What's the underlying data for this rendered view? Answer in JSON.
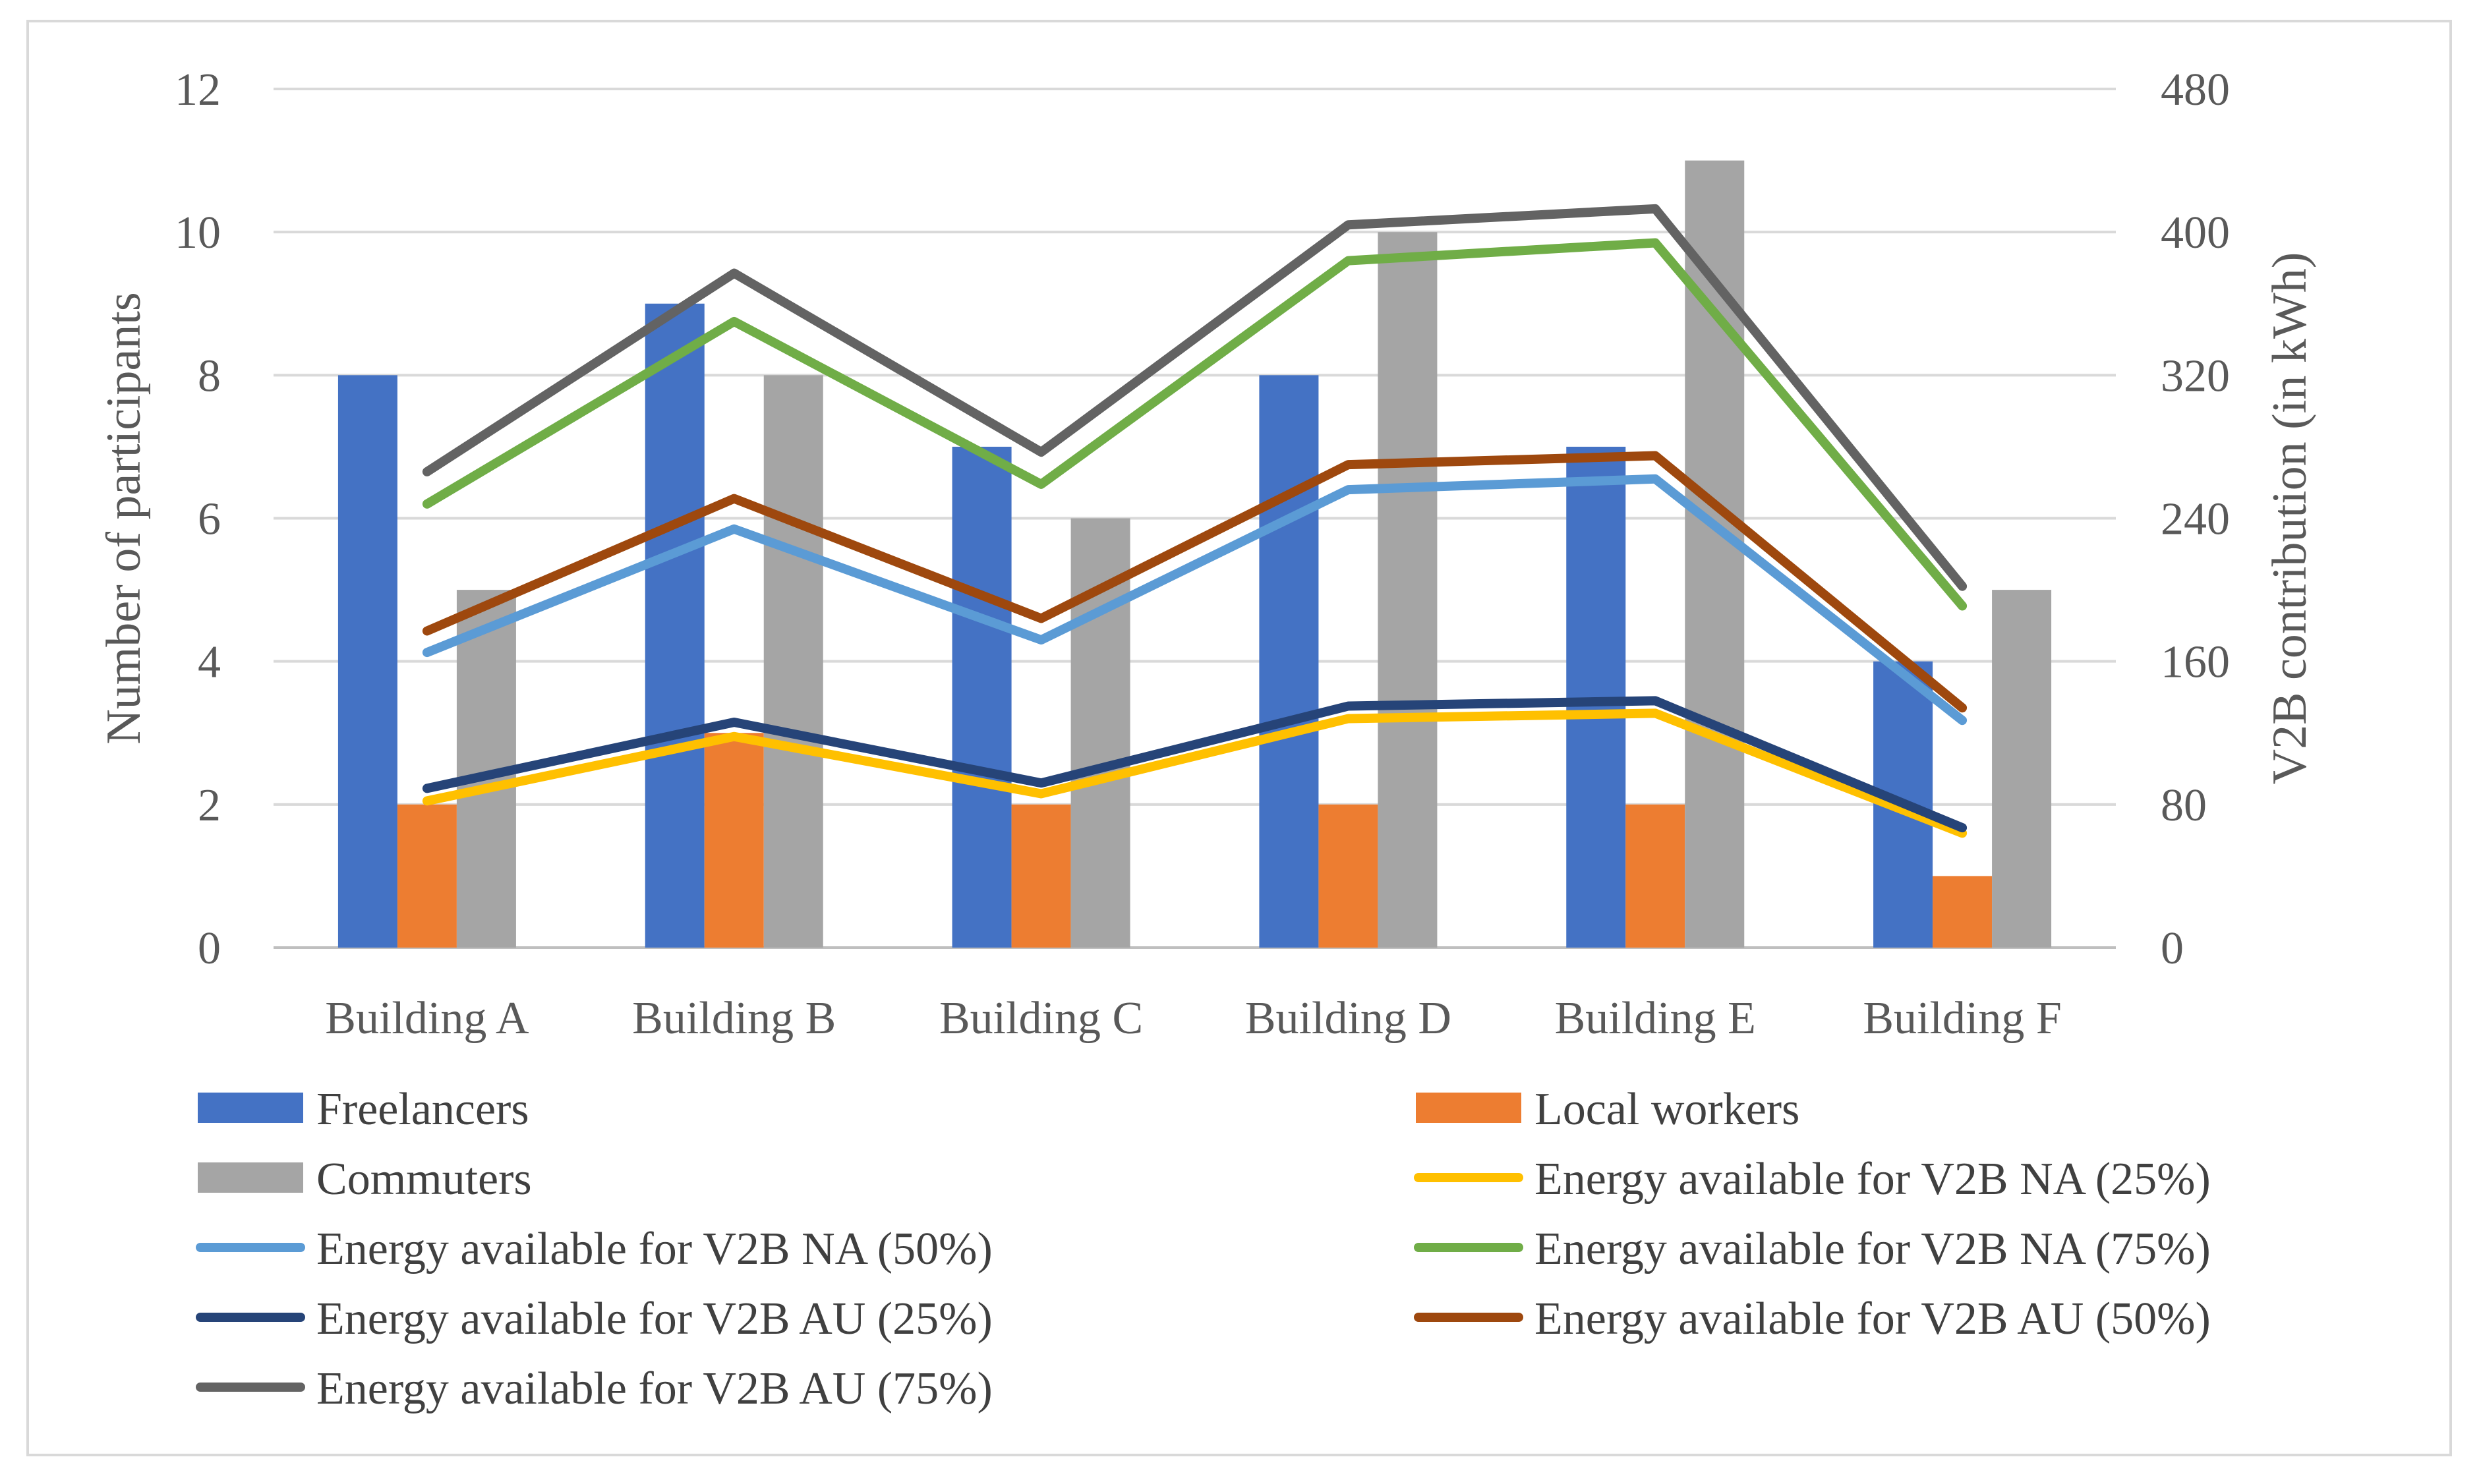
{
  "chart_data": {
    "type": "bar",
    "categories": [
      "Building A",
      "Building B",
      "Building C",
      "Building D",
      "Building E",
      "Building F"
    ],
    "y_left": {
      "label": "Number of participants",
      "ylim": [
        0,
        12
      ],
      "ticks": [
        0,
        2,
        4,
        6,
        8,
        10,
        12
      ],
      "tick_labels": [
        "0",
        "2",
        "4",
        "6",
        "8",
        "10",
        "12"
      ]
    },
    "y_right": {
      "label": "V2B contribution (in kWh)",
      "ylim": [
        0,
        480
      ],
      "ticks": [
        0,
        80,
        160,
        240,
        320,
        400,
        480
      ],
      "tick_labels": [
        "0",
        "80",
        "160",
        "240",
        "320",
        "400",
        "480"
      ]
    },
    "grid": true,
    "legend_position": "bottom",
    "bar_series": [
      {
        "name": "Freelancers",
        "color": "#4472c4",
        "values": [
          8,
          9,
          7,
          8,
          7,
          4
        ]
      },
      {
        "name": "Local workers",
        "color": "#ed7d31",
        "values": [
          2,
          3,
          2,
          2,
          2,
          1
        ]
      },
      {
        "name": "Commuters",
        "color": "#a5a5a5",
        "values": [
          5,
          8,
          6,
          10,
          11,
          5
        ]
      }
    ],
    "line_series": [
      {
        "name": "Energy available for V2B NA (25%)",
        "color": "#ffc000",
        "axis": "right",
        "values": [
          82,
          118,
          86,
          128,
          131,
          64
        ]
      },
      {
        "name": "Energy available for V2B NA (50%)",
        "color": "#5b9bd5",
        "axis": "right",
        "values": [
          165,
          234,
          172,
          256,
          262,
          127
        ]
      },
      {
        "name": "Energy available for V2B NA (75%)",
        "color": "#70ad47",
        "axis": "right",
        "values": [
          248,
          350,
          259,
          384,
          394,
          191
        ]
      },
      {
        "name": "Energy available for V2B AU (25%)",
        "color": "#264478",
        "axis": "right",
        "values": [
          89,
          126,
          92,
          135,
          138,
          67
        ]
      },
      {
        "name": "Energy available for V2B AU (50%)",
        "color": "#9e480e",
        "axis": "right",
        "values": [
          177,
          251,
          184,
          270,
          275,
          134
        ]
      },
      {
        "name": "Energy available for V2B AU (75%)",
        "color": "#636363",
        "axis": "right",
        "values": [
          266,
          377,
          277,
          404,
          413,
          202
        ]
      }
    ]
  },
  "legend": {
    "items": [
      {
        "name": "Freelancers",
        "kind": "bar",
        "color": "#4472c4"
      },
      {
        "name": "Local workers",
        "kind": "bar",
        "color": "#ed7d31"
      },
      {
        "name": "Commuters",
        "kind": "bar",
        "color": "#a5a5a5"
      },
      {
        "name": "Energy available for V2B NA (25%)",
        "kind": "line",
        "color": "#ffc000"
      },
      {
        "name": "Energy available for V2B NA (50%)",
        "kind": "line",
        "color": "#5b9bd5"
      },
      {
        "name": "Energy available for V2B NA (75%)",
        "kind": "line",
        "color": "#70ad47"
      },
      {
        "name": "Energy available for V2B AU (25%)",
        "kind": "line",
        "color": "#264478"
      },
      {
        "name": "Energy available for V2B AU (50%)",
        "kind": "line",
        "color": "#9e480e"
      },
      {
        "name": "Energy available for V2B AU (75%)",
        "kind": "line",
        "color": "#636363"
      }
    ]
  }
}
